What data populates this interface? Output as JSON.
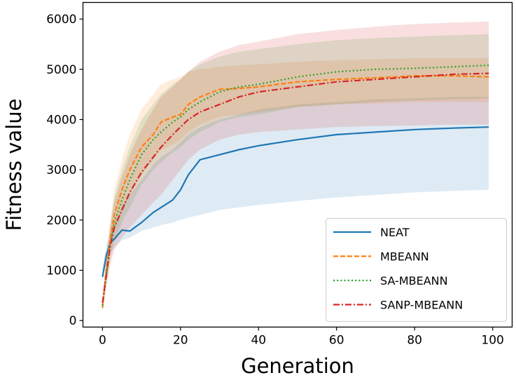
{
  "chart_data": {
    "type": "line",
    "title": "",
    "xlabel": "Generation",
    "ylabel": "Fitness value",
    "xlim": [
      -5,
      105
    ],
    "ylim": [
      -130,
      6330
    ],
    "xticks": [
      0,
      20,
      40,
      60,
      80,
      100
    ],
    "yticks": [
      0,
      1000,
      2000,
      3000,
      4000,
      5000,
      6000
    ],
    "xtick_labels": [
      "0",
      "20",
      "40",
      "60",
      "80",
      "100"
    ],
    "ytick_labels": [
      "0",
      "1000",
      "2000",
      "3000",
      "4000",
      "5000",
      "6000"
    ],
    "grid": false,
    "legend_position": "bottom-right",
    "x": [
      0,
      1,
      2,
      3,
      5,
      7,
      10,
      13,
      15,
      18,
      20,
      22,
      25,
      30,
      35,
      40,
      50,
      60,
      70,
      80,
      90,
      99
    ],
    "series": [
      {
        "name": "NEAT",
        "color": "#1f77b4",
        "dash": "solid",
        "values": [
          870,
          1300,
          1550,
          1620,
          1800,
          1780,
          1950,
          2150,
          2250,
          2400,
          2600,
          2900,
          3200,
          3300,
          3400,
          3480,
          3600,
          3700,
          3750,
          3800,
          3830,
          3850
        ],
        "lower": [
          750,
          1150,
          1350,
          1450,
          1600,
          1650,
          1780,
          1850,
          1900,
          1950,
          2000,
          2050,
          2100,
          2200,
          2250,
          2300,
          2380,
          2450,
          2500,
          2550,
          2580,
          2600
        ],
        "upper": [
          1050,
          1500,
          1750,
          1900,
          2300,
          2500,
          2800,
          3100,
          3250,
          3400,
          3550,
          3700,
          3850,
          4000,
          4100,
          4200,
          4300,
          4350,
          4400,
          4420,
          4450,
          4450
        ]
      },
      {
        "name": "MBEANN",
        "color": "#ff7f0e",
        "dash": "dashed",
        "values": [
          250,
          1000,
          1600,
          2100,
          2600,
          3000,
          3450,
          3700,
          3950,
          4050,
          4100,
          4300,
          4450,
          4600,
          4620,
          4650,
          4750,
          4800,
          4830,
          4870,
          4870,
          4850
        ],
        "lower": [
          150,
          800,
          1300,
          1700,
          2150,
          2500,
          2900,
          3200,
          3400,
          3500,
          3600,
          3750,
          3900,
          4050,
          4100,
          4150,
          4250,
          4300,
          4320,
          4350,
          4350,
          4350
        ],
        "upper": [
          400,
          1300,
          2000,
          2600,
          3200,
          3700,
          4200,
          4500,
          4700,
          4800,
          4850,
          4950,
          5000,
          5050,
          5080,
          5100,
          5150,
          5180,
          5200,
          5220,
          5220,
          5220
        ]
      },
      {
        "name": "SA-MBEANN",
        "color": "#2ca02c",
        "dash": "dotted",
        "values": [
          300,
          900,
          1500,
          1950,
          2400,
          2800,
          3300,
          3600,
          3750,
          3950,
          4050,
          4200,
          4350,
          4550,
          4650,
          4700,
          4850,
          4950,
          5000,
          5020,
          5050,
          5080
        ],
        "lower": [
          200,
          700,
          1200,
          1550,
          1950,
          2250,
          2700,
          3000,
          3150,
          3350,
          3450,
          3600,
          3750,
          3950,
          4050,
          4100,
          4250,
          4300,
          4350,
          4380,
          4400,
          4420
        ],
        "upper": [
          450,
          1200,
          1900,
          2450,
          3000,
          3450,
          4000,
          4300,
          4500,
          4700,
          4800,
          4950,
          5100,
          5250,
          5350,
          5400,
          5500,
          5580,
          5620,
          5650,
          5680,
          5700
        ]
      },
      {
        "name": "SANP-MBEANN",
        "color": "#d62728",
        "dash": "dashdot",
        "values": [
          350,
          900,
          1500,
          1850,
          2200,
          2550,
          2950,
          3250,
          3450,
          3700,
          3850,
          4000,
          4150,
          4300,
          4450,
          4550,
          4650,
          4750,
          4800,
          4850,
          4900,
          4920
        ],
        "lower": [
          250,
          700,
          1100,
          1400,
          1650,
          1850,
          2100,
          2350,
          2500,
          2800,
          3000,
          3200,
          3400,
          3600,
          3700,
          3750,
          3800,
          3850,
          3870,
          3880,
          3900,
          3900
        ],
        "upper": [
          500,
          1200,
          1900,
          2350,
          2850,
          3300,
          3800,
          4200,
          4450,
          4650,
          4800,
          4950,
          5150,
          5350,
          5480,
          5550,
          5700,
          5780,
          5850,
          5900,
          5930,
          5950
        ]
      }
    ]
  }
}
